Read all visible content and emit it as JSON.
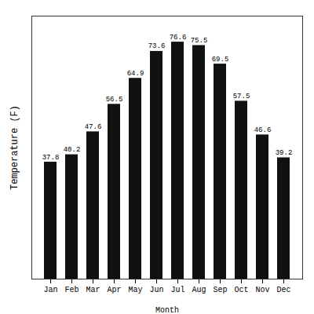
{
  "chart_data": {
    "type": "bar",
    "categories": [
      "Jan",
      "Feb",
      "Mar",
      "Apr",
      "May",
      "Jun",
      "Jul",
      "Aug",
      "Sep",
      "Oct",
      "Nov",
      "Dec"
    ],
    "values": [
      37.8,
      40.2,
      47.6,
      56.5,
      64.9,
      73.6,
      76.6,
      75.5,
      69.5,
      57.5,
      46.6,
      39.2
    ],
    "color": "#111111",
    "xlabel": "Month",
    "ylabel": "Temperature (F)",
    "ylim": [
      0,
      85
    ],
    "grid": false,
    "data_labels": true,
    "tick_labels": "x"
  }
}
